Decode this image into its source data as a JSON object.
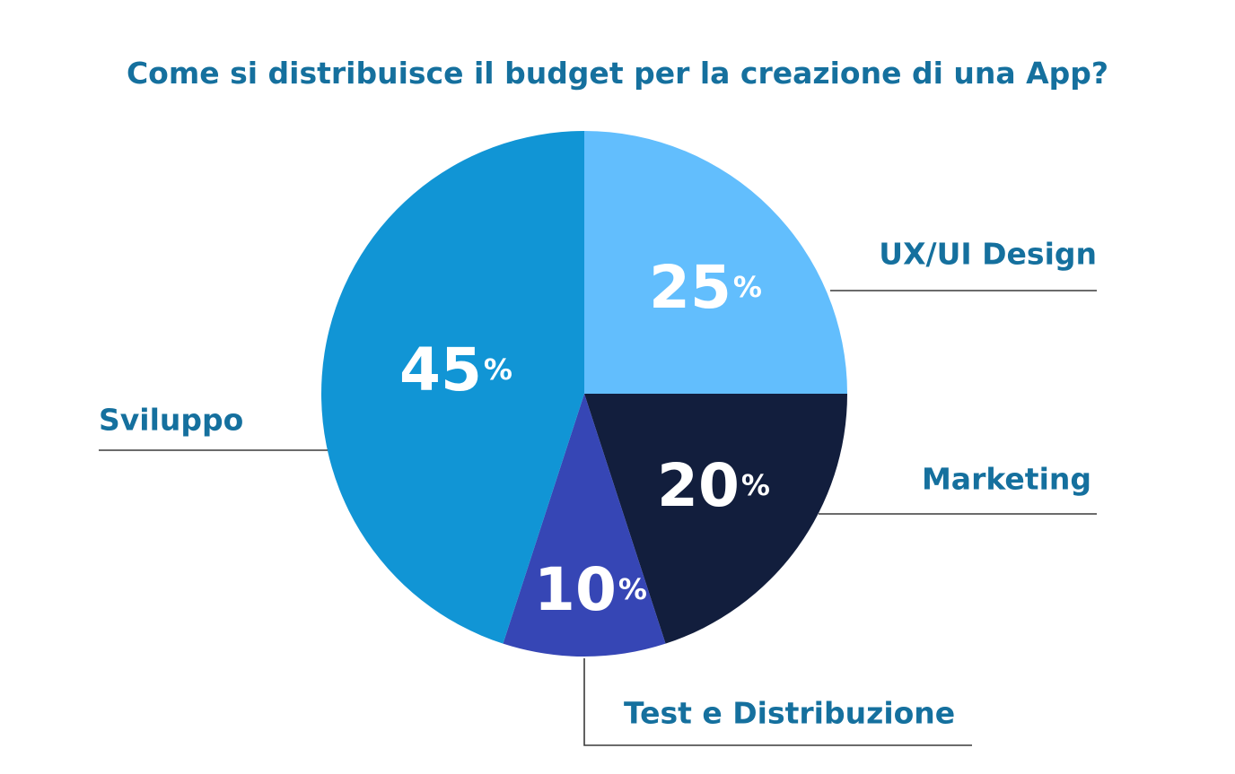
{
  "chart_data": {
    "type": "pie",
    "title": "Come si distribuisce il budget per la creazione di una App?",
    "unit": "%",
    "slices": [
      {
        "label": "UX/UI Design",
        "value": 25,
        "value_text": "25",
        "color": "#62BEFD"
      },
      {
        "label": "Marketing",
        "value": 20,
        "value_text": "20",
        "color": "#121E3D"
      },
      {
        "label": "Test e Distribuzione",
        "value": 10,
        "value_text": "10",
        "color": "#3646B5"
      },
      {
        "label": "Sviluppo",
        "value": 45,
        "value_text": "45",
        "color": "#1195D5"
      }
    ],
    "start_angle": "12 o'clock",
    "direction": "clockwise",
    "legend": "none",
    "text_color": "#15709E",
    "value_label_color": "#ffffff",
    "leader_line_color": "#3a3a3a"
  }
}
